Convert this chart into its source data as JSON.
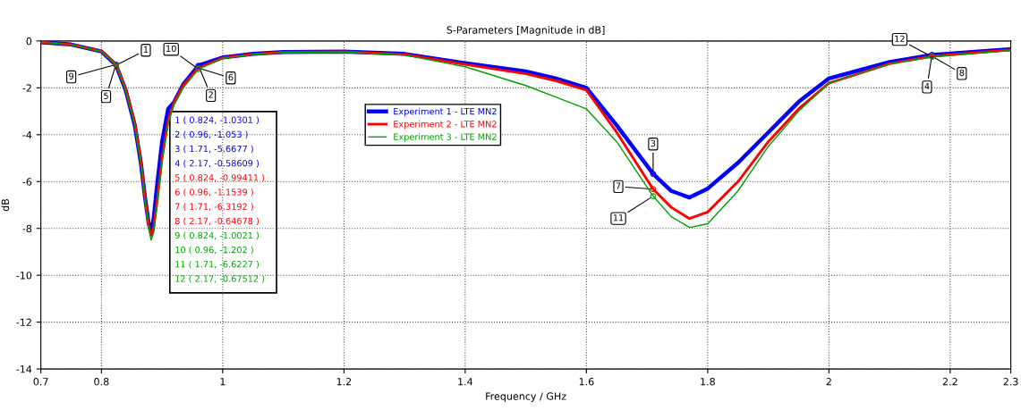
{
  "chart_data": {
    "type": "line",
    "title": "S-Parameters [Magnitude in dB]",
    "xlabel": "Frequency / GHz",
    "ylabel": "dB",
    "x": [
      0.7,
      0.75,
      0.8,
      0.824,
      0.84,
      0.855,
      0.865,
      0.872,
      0.878,
      0.882,
      0.886,
      0.892,
      0.9,
      0.91,
      0.92,
      0.935,
      0.96,
      1.0,
      1.05,
      1.1,
      1.2,
      1.3,
      1.4,
      1.5,
      1.55,
      1.6,
      1.65,
      1.71,
      1.74,
      1.77,
      1.8,
      1.85,
      1.9,
      1.95,
      2.0,
      2.1,
      2.17,
      2.3
    ],
    "series": [
      {
        "name": "Experiment 1 - LTE MN2",
        "color": "#0000ff",
        "values": [
          -0.05,
          -0.15,
          -0.45,
          -1.03,
          -2.1,
          -3.6,
          -5.2,
          -6.7,
          -7.8,
          -8.1,
          -7.6,
          -6.1,
          -4.3,
          -2.9,
          -2.6,
          -1.85,
          -1.05,
          -0.7,
          -0.55,
          -0.47,
          -0.45,
          -0.55,
          -0.95,
          -1.3,
          -1.6,
          -2.0,
          -3.6,
          -5.67,
          -6.4,
          -6.68,
          -6.3,
          -5.2,
          -3.9,
          -2.6,
          -1.6,
          -0.9,
          -0.59,
          -0.35
        ]
      },
      {
        "name": "Experiment 2 - LTE MN2",
        "color": "#ff0000",
        "values": [
          -0.05,
          -0.15,
          -0.44,
          -0.99,
          -2.05,
          -3.5,
          -5.1,
          -6.7,
          -7.9,
          -8.3,
          -8.0,
          -6.8,
          -5.0,
          -3.4,
          -2.6,
          -1.9,
          -1.15,
          -0.72,
          -0.56,
          -0.48,
          -0.46,
          -0.57,
          -1.0,
          -1.4,
          -1.7,
          -2.1,
          -3.9,
          -6.32,
          -7.1,
          -7.58,
          -7.3,
          -6.0,
          -4.3,
          -2.9,
          -1.8,
          -0.97,
          -0.65,
          -0.38
        ]
      },
      {
        "name": "Experiment 3 - LTE MN2",
        "color": "#00a000",
        "values": [
          -0.05,
          -0.15,
          -0.45,
          -1.0,
          -2.1,
          -3.6,
          -5.2,
          -6.8,
          -8.0,
          -8.5,
          -8.2,
          -6.9,
          -5.1,
          -3.5,
          -2.7,
          -2.0,
          -1.2,
          -0.74,
          -0.57,
          -0.49,
          -0.47,
          -0.6,
          -1.1,
          -1.9,
          -2.4,
          -2.9,
          -4.3,
          -6.62,
          -7.5,
          -7.96,
          -7.8,
          -6.4,
          -4.5,
          -3.0,
          -1.8,
          -0.98,
          -0.68,
          -0.4
        ]
      }
    ],
    "xlim": [
      0.7,
      2.3
    ],
    "xticks": [
      0.7,
      0.8,
      1,
      1.2,
      1.4,
      1.6,
      1.8,
      2,
      2.2,
      2.3
    ],
    "ylim": [
      -14,
      0
    ],
    "yticks": [
      -14,
      -12,
      -10,
      -8,
      -6,
      -4,
      -2,
      0
    ],
    "grid": true,
    "legend": "top left",
    "marker": "none",
    "line_style": "solid",
    "annotations": [
      {
        "text": "1",
        "x": 0.824,
        "y": -1.0301
      },
      {
        "text": "2",
        "x": 0.96,
        "y": -1.053
      },
      {
        "text": "3",
        "x": 1.71,
        "y": -5.6677
      },
      {
        "text": "4",
        "x": 2.17,
        "y": -0.58609
      },
      {
        "text": "5",
        "x": 0.824,
        "y": -0.99411
      },
      {
        "text": "6",
        "x": 0.96,
        "y": -1.1539
      },
      {
        "text": "7",
        "x": 1.71,
        "y": -6.3192
      },
      {
        "text": "8",
        "x": 2.17,
        "y": -0.64678
      },
      {
        "text": "9",
        "x": 0.824,
        "y": -1.0021
      },
      {
        "text": "10",
        "x": 0.96,
        "y": -1.202
      },
      {
        "text": "11",
        "x": 1.71,
        "y": -6.6227
      },
      {
        "text": "12",
        "x": 2.17,
        "y": -0.67512
      },
      "1 ( 0.824, -1.0301 )",
      "2 ( 0.96, -1.053 )",
      "3 ( 1.71, -5.6677 )",
      "4 ( 2.17, -0.58609 )",
      "5 ( 0.824, -0.99411 )",
      "6 ( 0.96, -1.1539 )",
      "7 ( 1.71, -6.3192 )",
      "8 ( 2.17, -0.64678 )",
      "9 ( 0.824, -1.0021 )",
      "10 ( 0.96, -1.202 )",
      "11 ( 1.71, -6.6227 )",
      "12 ( 2.17, -0.67512 )"
    ]
  }
}
